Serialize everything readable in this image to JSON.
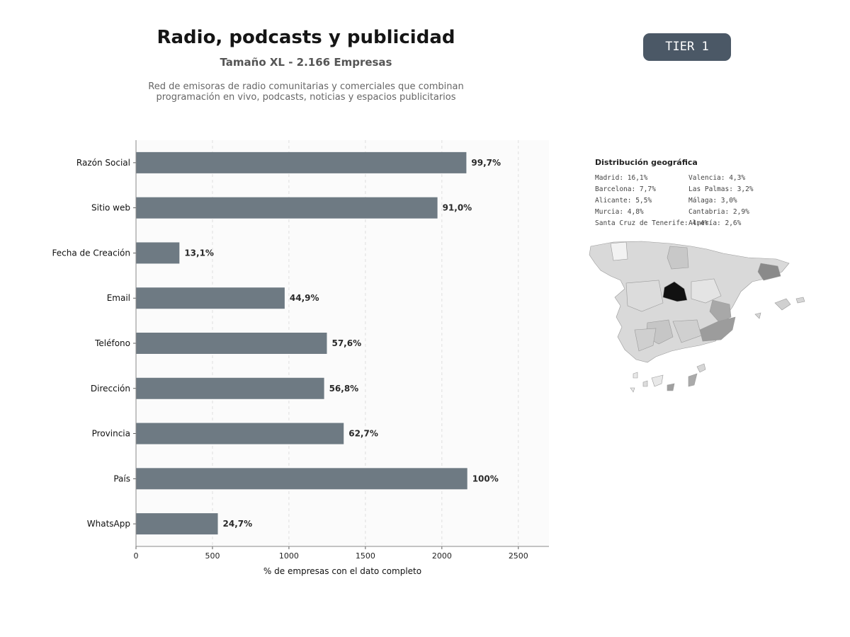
{
  "header": {
    "title": "Radio, podcasts y publicidad",
    "subtitle": "Tamaño XL - 2.166 Empresas",
    "description_line1": "Red de emisoras de radio comunitarias y comerciales que combinan",
    "description_line2": "programación en vivo, podcasts, noticias y espacios publicitarios",
    "tier": "TIER 1"
  },
  "colors": {
    "bar": "#6e7a83",
    "plot_bg": "#fbfbfb",
    "tier_bg": "#4b5866"
  },
  "chart_data": {
    "type": "bar",
    "orientation": "horizontal",
    "categories": [
      "Razón Social",
      "Sitio web",
      "Fecha de Creación",
      "Email",
      "Teléfono",
      "Dirección",
      "Provincia",
      "País",
      "WhatsApp"
    ],
    "values": [
      2160,
      1971,
      284,
      972,
      1248,
      1230,
      1358,
      2166,
      535
    ],
    "labels": [
      "99,7%",
      "91,0%",
      "13,1%",
      "44,9%",
      "57,6%",
      "56,8%",
      "62,7%",
      "100%",
      "24,7%"
    ],
    "xlabel": "% de empresas con el dato completo",
    "xlim": [
      0,
      2700
    ],
    "xticks": [
      0,
      500,
      1000,
      1500,
      2000,
      2500
    ],
    "grid": "x-dashed"
  },
  "geo": {
    "title": "Distribución geográfica",
    "col1": [
      "Madrid: 16,1%",
      "Barcelona: 7,7%",
      "Alicante: 5,5%",
      "Murcia: 4,8%",
      "Santa Cruz de Tenerife: 4,4%"
    ],
    "col2": [
      "Valencia: 4,3%",
      "Las Palmas: 3,2%",
      "Málaga: 3,0%",
      "Cantabria: 2,9%",
      "Almería: 2,6%"
    ]
  }
}
